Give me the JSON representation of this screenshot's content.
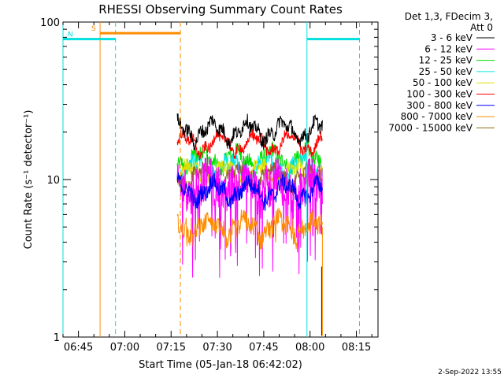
{
  "chart_data": {
    "type": "line",
    "title": "RHESSI Observing Summary Count Rates",
    "xlabel": "Start Time (05-Jan-18 06:42:02)",
    "ylabel": "Count Rate (s⁻¹ detector⁻¹)",
    "yscale": "log",
    "ylim": [
      1,
      100
    ],
    "xlim": [
      "06:40",
      "08:22"
    ],
    "x_ticks": [
      "06:45",
      "07:00",
      "07:15",
      "07:30",
      "07:45",
      "08:00",
      "08:15"
    ],
    "y_ticks": [
      "1",
      "10",
      "100"
    ],
    "legend_header": [
      "Det 1,3, FDecim 3,",
      "Att 0"
    ],
    "legend_position": "top-right",
    "timestamp": "2-Sep-2022 13:55",
    "data_start": "07:17",
    "data_end": "08:04",
    "series": [
      {
        "label": "3 - 6 keV",
        "color": "#000000",
        "level": 20.5,
        "spread": 0.1
      },
      {
        "label": "6 - 12 keV",
        "color": "#ff00ff",
        "level": 9.5,
        "spread": 0.3
      },
      {
        "label": "12 - 25 keV",
        "color": "#00e000",
        "level": 13.5,
        "spread": 0.12
      },
      {
        "label": "25 - 50 keV",
        "color": "#00e8e8",
        "level": 12.0,
        "spread": 0.12
      },
      {
        "label": "50 - 100 keV",
        "color": "#e0e000",
        "level": 11.0,
        "spread": 0.1
      },
      {
        "label": "100 - 300 keV",
        "color": "#ff0000",
        "level": 17.0,
        "spread": 0.08
      },
      {
        "label": "300 - 800 keV",
        "color": "#0000ff",
        "level": 8.5,
        "spread": 0.12
      },
      {
        "label": "800 - 7000 keV",
        "color": "#ff8c00",
        "level": 5.0,
        "spread": 0.14
      },
      {
        "label": "7000 - 15000 keV",
        "color": "#8b6914",
        "level": 10.5,
        "spread": 0.1
      }
    ],
    "annotations": [
      {
        "kind": "saa",
        "label": "S",
        "color": "#ff8c00",
        "start": "06:52",
        "end": "07:18",
        "y": 85
      },
      {
        "kind": "night",
        "label": "N",
        "color": "#00e0e0",
        "start": "06:40",
        "end": "06:57",
        "y": 78
      },
      {
        "kind": "night",
        "label": "",
        "color": "#00e0e0",
        "start": "07:59",
        "end": "08:16",
        "y": 78
      }
    ]
  }
}
